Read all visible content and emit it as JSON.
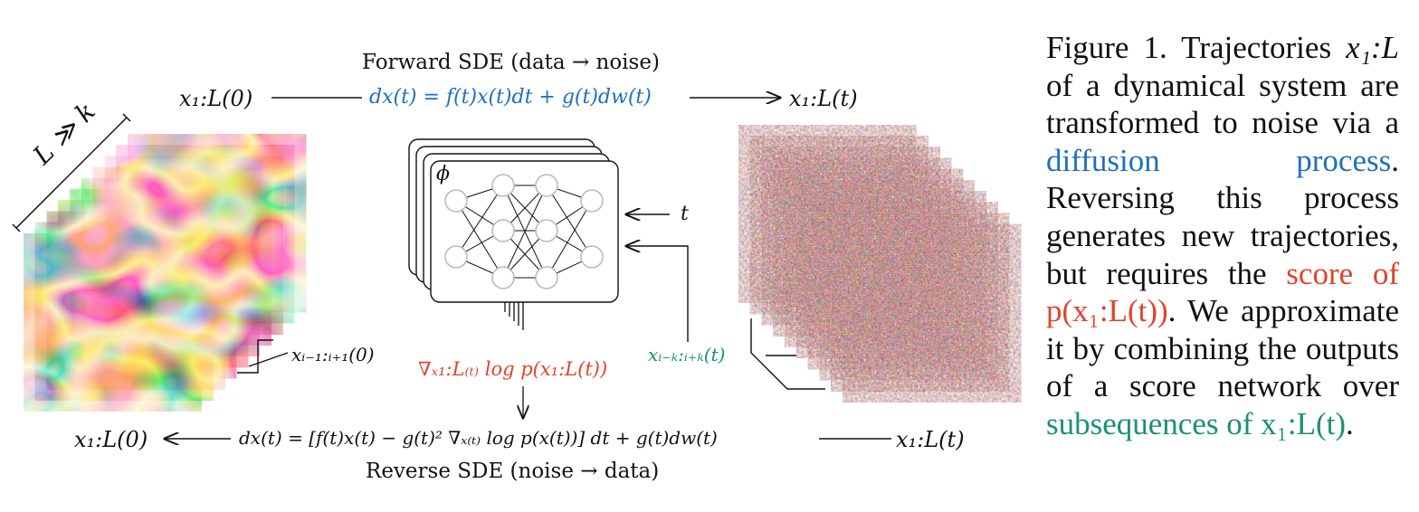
{
  "forward": {
    "title": "Forward SDE (data → noise)",
    "left_label": "x₁:L(0)",
    "equation": "dx(t) = f(t)x(t)dt + g(t)dw(t)",
    "right_label": "x₁:L(t)"
  },
  "reverse": {
    "title": "Reverse SDE (noise → data)",
    "left_label": "x₁:L(0)",
    "equation": "dx(t) = [f(t)x(t) − g(t)² ∇ₓ₍ₜ₎ log p(x(t))] dt + g(t)dw(t)",
    "right_label": "x₁:L(t)"
  },
  "stack_left": {
    "length_label": "L ≫ k",
    "window_label": "xᵢ₋₁:ᵢ₊₁(0)"
  },
  "stack_right": {
    "window_label": "xᵢ₋ₖ:ᵢ₊ₖ(t)"
  },
  "network": {
    "param_label": "ϕ",
    "time_input": "t",
    "score_output": "∇ₓ₁:L₍ₜ₎ log p(x₁:L(t))"
  },
  "caption": {
    "lead": "Figure 1.",
    "part1": "Trajectories",
    "var1": "x₁:L",
    "part2": "of a dynamical system are transformed to noise via a",
    "link1": "diffusion process",
    "part3": ". Reversing this process generates new trajectories, but requires the",
    "link2": "score of p(x₁:L(t))",
    "part4": ". We approximate it by combining the outputs of a score network over",
    "link3": "subsequences of x₁:L(t)",
    "part5": "."
  },
  "colors": {
    "forward_eq": "#1f6fc0",
    "score": "#e2432a",
    "subsequence": "#1a9270",
    "field_red": "#e9553b",
    "field_blue": "#1c5fb8"
  }
}
